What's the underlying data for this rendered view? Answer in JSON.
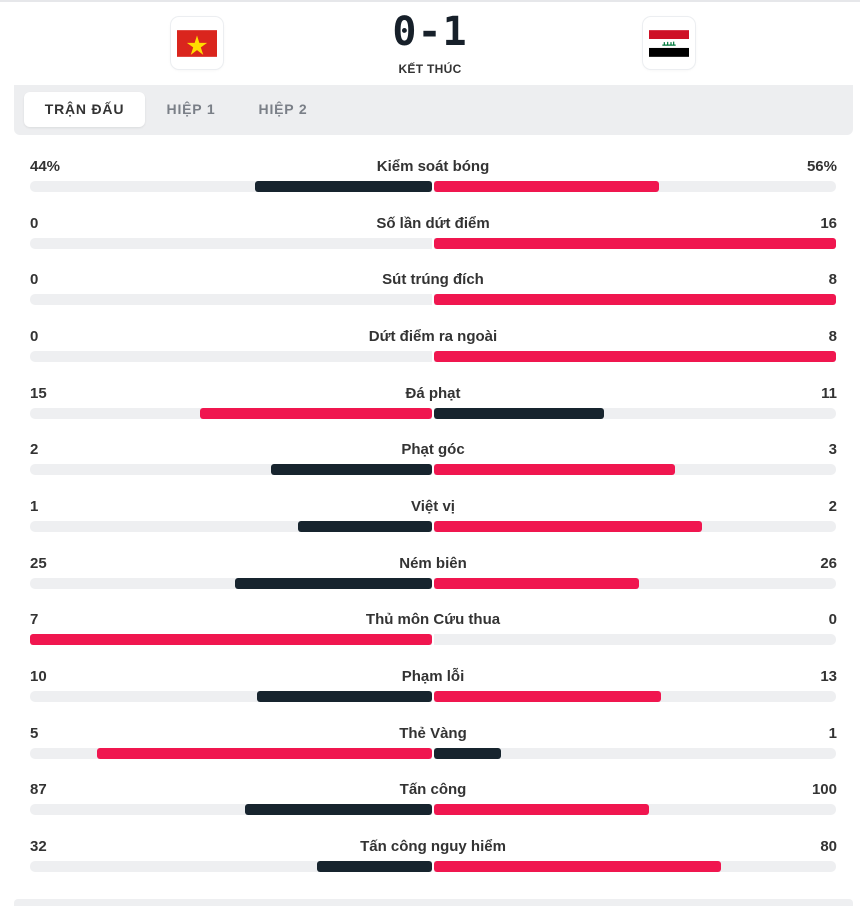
{
  "match": {
    "score": "0-1",
    "status": "KẾT THÚC",
    "home_flag": "vietnam-flag-icon",
    "away_flag": "iraq-flag-icon"
  },
  "tabs": [
    {
      "label": "TRẬN ĐẤU",
      "active": true
    },
    {
      "label": "HIỆP 1",
      "active": false
    },
    {
      "label": "HIỆP 2",
      "active": false
    }
  ],
  "colors": {
    "winner": "#f0164f",
    "loser": "#17242e",
    "track": "#eeeff1"
  },
  "stats": [
    {
      "label": "Kiểm soát bóng",
      "home": "44%",
      "away": "56%",
      "home_value": 44,
      "away_value": 56,
      "max": 100
    },
    {
      "label": "Số lần dứt điểm",
      "home": "0",
      "away": "16",
      "home_value": 0,
      "away_value": 16,
      "max": 16
    },
    {
      "label": "Sút trúng đích",
      "home": "0",
      "away": "8",
      "home_value": 0,
      "away_value": 8,
      "max": 8
    },
    {
      "label": "Dứt điểm ra ngoài",
      "home": "0",
      "away": "8",
      "home_value": 0,
      "away_value": 8,
      "max": 8
    },
    {
      "label": "Đá phạt",
      "home": "15",
      "away": "11",
      "home_value": 15,
      "away_value": 11,
      "max": 26
    },
    {
      "label": "Phạt góc",
      "home": "2",
      "away": "3",
      "home_value": 2,
      "away_value": 3,
      "max": 5
    },
    {
      "label": "Việt vị",
      "home": "1",
      "away": "2",
      "home_value": 1,
      "away_value": 2,
      "max": 3
    },
    {
      "label": "Ném biên",
      "home": "25",
      "away": "26",
      "home_value": 25,
      "away_value": 26,
      "max": 51
    },
    {
      "label": "Thủ môn Cứu thua",
      "home": "7",
      "away": "0",
      "home_value": 7,
      "away_value": 0,
      "max": 7
    },
    {
      "label": "Phạm lỗi",
      "home": "10",
      "away": "13",
      "home_value": 10,
      "away_value": 13,
      "max": 23
    },
    {
      "label": "Thẻ Vàng",
      "home": "5",
      "away": "1",
      "home_value": 5,
      "away_value": 1,
      "max": 6
    },
    {
      "label": "Tấn công",
      "home": "87",
      "away": "100",
      "home_value": 87,
      "away_value": 100,
      "max": 187
    },
    {
      "label": "Tấn công nguy hiểm",
      "home": "32",
      "away": "80",
      "home_value": 32,
      "away_value": 80,
      "max": 112
    }
  ]
}
